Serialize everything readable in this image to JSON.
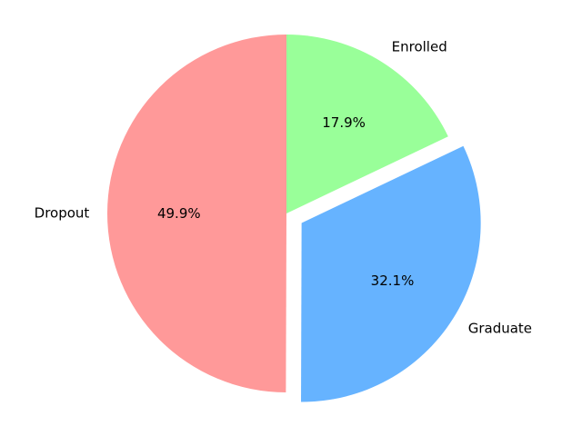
{
  "chart_data": {
    "type": "pie",
    "title": "",
    "slices": [
      {
        "label": "Enrolled",
        "value": 17.9,
        "pct_label": "17.9%",
        "color": "#99ff99",
        "exploded": false
      },
      {
        "label": "Graduate",
        "value": 32.1,
        "pct_label": "32.1%",
        "color": "#66b3ff",
        "exploded": true
      },
      {
        "label": "Dropout",
        "value": 49.9,
        "pct_label": "49.9%",
        "color": "#ff9999",
        "exploded": false
      }
    ],
    "start_angle": "top",
    "direction": "clockwise",
    "legend": "none"
  }
}
